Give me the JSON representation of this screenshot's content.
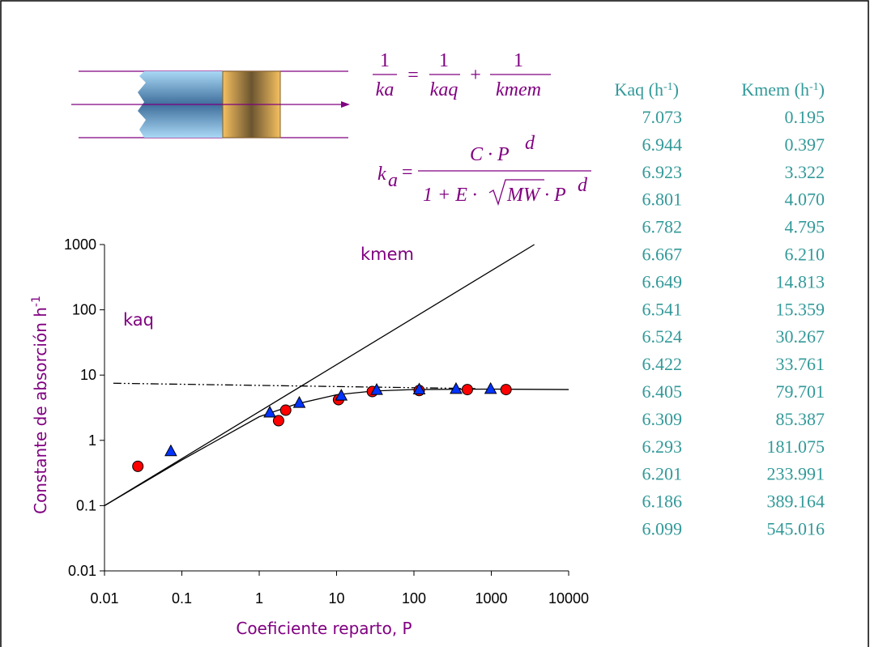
{
  "chart_data": {
    "type": "scatter",
    "x_label": "Coeficiente reparto, P",
    "y_label": {
      "text": "Constante de absorción  h",
      "sup": "-1"
    },
    "xlim": [
      0.01,
      10000
    ],
    "ylim": [
      0.01,
      1000
    ],
    "xticks": [
      0.01,
      0.1,
      1,
      10,
      100,
      1000,
      10000
    ],
    "yticks": [
      0.01,
      0.1,
      1,
      10,
      100,
      1000
    ],
    "log_x": true,
    "log_y": true,
    "annotations": [
      "kmem",
      "kaq"
    ],
    "series": [
      {
        "marker": "circle",
        "color": "#ff0000",
        "x": [
          0.027,
          1.78,
          2.2,
          10.6,
          29,
          117,
          490,
          1550
        ],
        "values": [
          0.4,
          2.0,
          2.9,
          4.2,
          5.6,
          5.8,
          6.0,
          6.0
        ]
      },
      {
        "marker": "triangle",
        "color": "#0033ff",
        "x": [
          0.072,
          1.37,
          3.3,
          11.5,
          33,
          117,
          350,
          980
        ],
        "values": [
          0.69,
          2.7,
          3.8,
          4.9,
          6.0,
          6.1,
          6.2,
          6.2
        ]
      },
      {
        "marker": "line",
        "color": "#000000",
        "x": [
          0.01,
          3600
        ],
        "values": [
          0.1,
          1000
        ]
      },
      {
        "marker": "dashed",
        "color": "#000000",
        "x": [
          0.013,
          670
        ],
        "values": [
          7.5,
          6.2
        ]
      },
      {
        "marker": "line",
        "color": "#000000",
        "x": [
          0.01,
          0.1,
          1,
          3,
          10,
          30,
          100,
          1000,
          10000
        ],
        "values": [
          0.1,
          0.5,
          2.3,
          3.6,
          5.0,
          5.7,
          6.0,
          6.1,
          6.0
        ]
      }
    ]
  },
  "equation1": {
    "terms": [
      {
        "num": "1",
        "den": "ka"
      },
      {
        "num": "1",
        "den": "kaq"
      },
      {
        "num": "1",
        "den": "kmem"
      }
    ],
    "ops": [
      "=",
      "+"
    ]
  },
  "equation2": {
    "lhs": "k",
    "lhs_sub": "a",
    "op": "=",
    "numerator": "C · P",
    "num_sup": "d",
    "den_head": "1 + E · ",
    "den_root": "MW",
    "den_tail": " · P",
    "den_sup": "d"
  },
  "table": {
    "columns": [
      {
        "label": "Kaq (h",
        "sup": "-1",
        "tail": ")"
      },
      {
        "label": "Kmem (h",
        "sup": "-1",
        "tail": ")"
      }
    ],
    "rows": [
      [
        "7.073",
        "0.195"
      ],
      [
        "6.944",
        "0.397"
      ],
      [
        "6.923",
        "3.322"
      ],
      [
        "6.801",
        "4.070"
      ],
      [
        "6.782",
        "4.795"
      ],
      [
        "6.667",
        "6.210"
      ],
      [
        "6.649",
        "14.813"
      ],
      [
        "6.541",
        "15.359"
      ],
      [
        "6.524",
        "30.267"
      ],
      [
        "6.422",
        "33.761"
      ],
      [
        "6.405",
        "79.701"
      ],
      [
        "6.309",
        "85.387"
      ],
      [
        "6.293",
        "181.075"
      ],
      [
        "6.201",
        "233.991"
      ],
      [
        "6.186",
        "389.164"
      ],
      [
        "6.099",
        "545.016"
      ]
    ]
  }
}
